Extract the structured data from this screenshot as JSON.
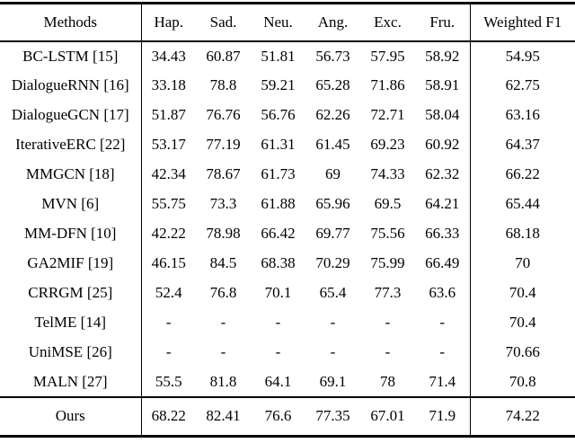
{
  "table": {
    "headers": [
      "Methods",
      "Hap.",
      "Sad.",
      "Neu.",
      "Ang.",
      "Exc.",
      "Fru.",
      "Weighted F1"
    ],
    "rows": [
      {
        "method": "BC-LSTM [15]",
        "values": [
          "34.43",
          "60.87",
          "51.81",
          "56.73",
          "57.95",
          "58.92"
        ],
        "weighted": "54.95",
        "bold_values": [],
        "bold_weighted": false
      },
      {
        "method": "DialogueRNN [16]",
        "values": [
          "33.18",
          "78.8",
          "59.21",
          "65.28",
          "71.86",
          "58.91"
        ],
        "weighted": "62.75",
        "bold_values": [],
        "bold_weighted": false
      },
      {
        "method": "DialogueGCN [17]",
        "values": [
          "51.87",
          "76.76",
          "56.76",
          "62.26",
          "72.71",
          "58.04"
        ],
        "weighted": "63.16",
        "bold_values": [],
        "bold_weighted": false
      },
      {
        "method": "IterativeERC [22]",
        "values": [
          "53.17",
          "77.19",
          "61.31",
          "61.45",
          "69.23",
          "60.92"
        ],
        "weighted": "64.37",
        "bold_values": [],
        "bold_weighted": false
      },
      {
        "method": "MMGCN [18]",
        "values": [
          "42.34",
          "78.67",
          "61.73",
          "69",
          "74.33",
          "62.32"
        ],
        "weighted": "66.22",
        "bold_values": [],
        "bold_weighted": false
      },
      {
        "method": "MVN [6]",
        "values": [
          "55.75",
          "73.3",
          "61.88",
          "65.96",
          "69.5",
          "64.21"
        ],
        "weighted": "65.44",
        "bold_values": [],
        "bold_weighted": false
      },
      {
        "method": "MM-DFN [10]",
        "values": [
          "42.22",
          "78.98",
          "66.42",
          "69.77",
          "75.56",
          "66.33"
        ],
        "weighted": "68.18",
        "bold_values": [],
        "bold_weighted": false
      },
      {
        "method": "GA2MIF [19]",
        "values": [
          "46.15",
          "84.5",
          "68.38",
          "70.29",
          "75.99",
          "66.49"
        ],
        "weighted": "70",
        "bold_values": [
          1
        ],
        "bold_weighted": false
      },
      {
        "method": "CRRGM [25]",
        "values": [
          "52.4",
          "76.8",
          "70.1",
          "65.4",
          "77.3",
          "63.6"
        ],
        "weighted": "70.4",
        "bold_values": [],
        "bold_weighted": false
      },
      {
        "method": "TelME [14]",
        "values": [
          "-",
          "-",
          "-",
          "-",
          "-",
          "-"
        ],
        "weighted": "70.4",
        "bold_values": [],
        "bold_weighted": false
      },
      {
        "method": "UniMSE [26]",
        "values": [
          "-",
          "-",
          "-",
          "-",
          "-",
          "-"
        ],
        "weighted": "70.66",
        "bold_values": [],
        "bold_weighted": false
      },
      {
        "method": "MALN [27]",
        "values": [
          "55.5",
          "81.8",
          "64.1",
          "69.1",
          "78",
          "71.4"
        ],
        "weighted": "70.8",
        "bold_values": [
          4
        ],
        "bold_weighted": false
      }
    ],
    "ours_row": {
      "method": "Ours",
      "values": [
        "68.22",
        "82.41",
        "76.6",
        "77.35",
        "67.01",
        "71.9"
      ],
      "weighted": "74.22",
      "bold_values": [
        0,
        2,
        3,
        5
      ],
      "bold_weighted": true
    }
  }
}
